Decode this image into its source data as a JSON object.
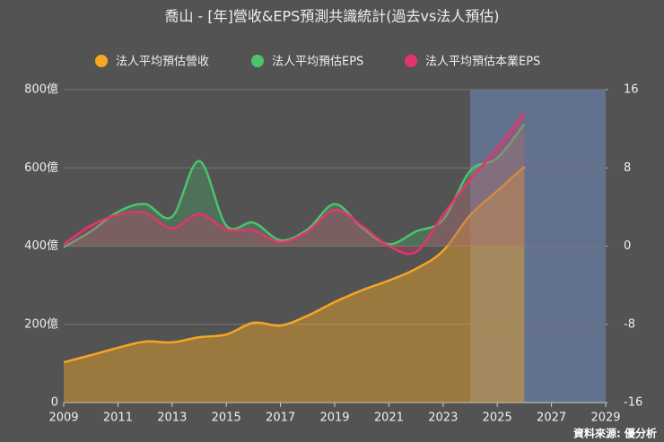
{
  "chart_data": {
    "type": "line",
    "title": "喬山 - [年]營收&EPS預測共識統計(過去vs法人預估)",
    "source": "資料來源: 優分析",
    "x": [
      2009,
      2010,
      2011,
      2012,
      2013,
      2014,
      2015,
      2016,
      2017,
      2018,
      2019,
      2020,
      2021,
      2022,
      2023,
      2024,
      2025,
      2026
    ],
    "xlim": [
      2009,
      2029
    ],
    "xticks": [
      2009,
      2011,
      2013,
      2015,
      2017,
      2019,
      2021,
      2023,
      2025,
      2027,
      2029
    ],
    "ylim": [
      0,
      800
    ],
    "yticks": [
      0,
      {
        "value": 200,
        "label": "200億"
      },
      {
        "value": 400,
        "label": "400億"
      },
      {
        "value": 600,
        "label": "600億"
      },
      {
        "value": 800,
        "label": "800億"
      }
    ],
    "y2lim": [
      -16,
      16
    ],
    "y2ticks": [
      -16,
      -8,
      0,
      8,
      16
    ],
    "shaded_xrange": [
      2024,
      2029
    ],
    "grid": true,
    "legend": "top",
    "series": [
      {
        "name": "法人平均預估營收",
        "color": "#f5a623",
        "values": [
          103,
          121,
          140,
          156,
          154,
          167,
          174,
          204,
          197,
          222,
          257,
          287,
          312,
          342,
          388,
          479,
          541,
          603
        ]
      },
      {
        "name": "法人平均預估EPS",
        "color": "#4cc36c",
        "axis": "y2",
        "values": [
          -0.1,
          1.5,
          3.5,
          4.3,
          3.0,
          8.7,
          2.1,
          2.4,
          0.6,
          1.7,
          4.3,
          1.9,
          0.2,
          1.5,
          2.7,
          7.7,
          9.0,
          12.5
        ]
      },
      {
        "name": "法人平均預估本業EPS",
        "color": "#e5336e",
        "axis": "y2",
        "values": [
          0.2,
          2.1,
          3.2,
          3.4,
          1.8,
          3.3,
          1.7,
          1.6,
          0.4,
          1.5,
          3.7,
          2.1,
          0.0,
          -0.6,
          3.2,
          6.8,
          10.0,
          13.6
        ]
      }
    ]
  }
}
